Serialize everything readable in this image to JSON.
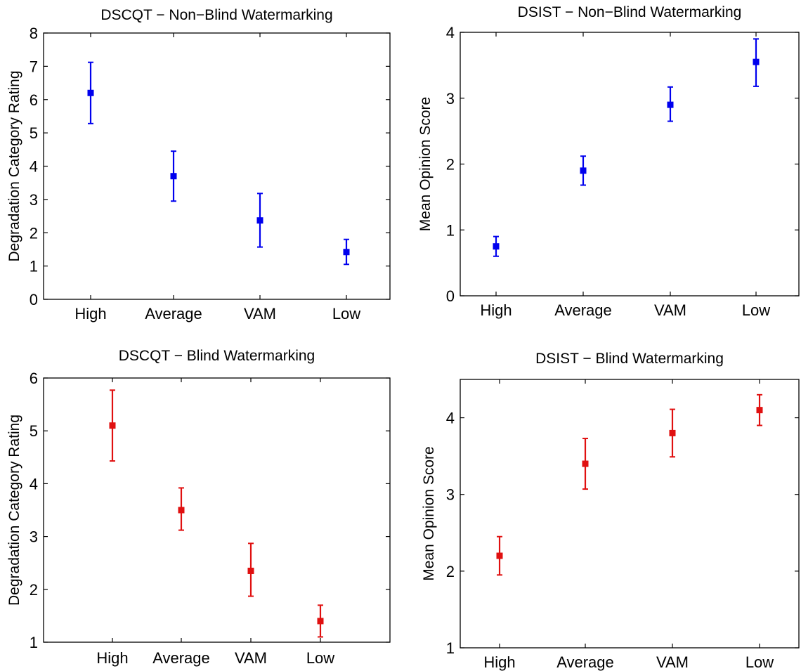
{
  "chart_data": [
    {
      "type": "scatter",
      "title": "DSCQT − Non−Blind Watermarking",
      "xlabel": "",
      "ylabel": "Degradation Category Rating",
      "categories": [
        "High",
        "Average",
        "VAM",
        "Low"
      ],
      "ylim": [
        0,
        8
      ],
      "yticks": [
        0,
        1,
        2,
        3,
        4,
        5,
        6,
        7,
        8
      ],
      "color": "#0000ee",
      "series": [
        {
          "values": [
            6.2,
            3.7,
            2.37,
            1.42
          ],
          "lower": [
            5.28,
            2.95,
            1.57,
            1.05
          ],
          "upper": [
            7.12,
            4.45,
            3.18,
            1.8
          ]
        }
      ]
    },
    {
      "type": "scatter",
      "title": "DSIST − Non−Blind Watermarking",
      "xlabel": "",
      "ylabel": "Mean Opinion Score",
      "categories": [
        "High",
        "Average",
        "VAM",
        "Low"
      ],
      "ylim": [
        0,
        4
      ],
      "yticks": [
        0,
        1,
        2,
        3,
        4
      ],
      "color": "#0000ee",
      "series": [
        {
          "values": [
            0.75,
            1.9,
            2.9,
            3.55
          ],
          "lower": [
            0.6,
            1.68,
            2.65,
            3.18
          ],
          "upper": [
            0.9,
            2.12,
            3.17,
            3.9
          ]
        }
      ]
    },
    {
      "type": "scatter",
      "title": "DSCQT − Blind Watermarking",
      "xlabel": "",
      "ylabel": "Degradation Category Rating",
      "categories": [
        "High",
        "Average",
        "VAM",
        "Low"
      ],
      "ylim": [
        1,
        6
      ],
      "yticks": [
        1,
        2,
        3,
        4,
        5,
        6
      ],
      "color": "#e01010",
      "series": [
        {
          "values": [
            5.1,
            3.5,
            2.35,
            1.4
          ],
          "lower": [
            4.43,
            3.12,
            1.87,
            1.1
          ],
          "upper": [
            5.77,
            3.92,
            2.87,
            1.7
          ]
        }
      ]
    },
    {
      "type": "scatter",
      "title": "DSIST − Blind Watermarking",
      "xlabel": "",
      "ylabel": "Mean Opinion Score",
      "categories": [
        "High",
        "Average",
        "VAM",
        "Low"
      ],
      "ylim": [
        1,
        4.5
      ],
      "yticks": [
        1,
        2,
        3,
        4
      ],
      "color": "#e01010",
      "series": [
        {
          "values": [
            2.2,
            3.4,
            3.8,
            4.1
          ],
          "lower": [
            1.95,
            3.07,
            3.49,
            3.9
          ],
          "upper": [
            2.45,
            3.73,
            4.11,
            4.3
          ]
        }
      ]
    }
  ]
}
